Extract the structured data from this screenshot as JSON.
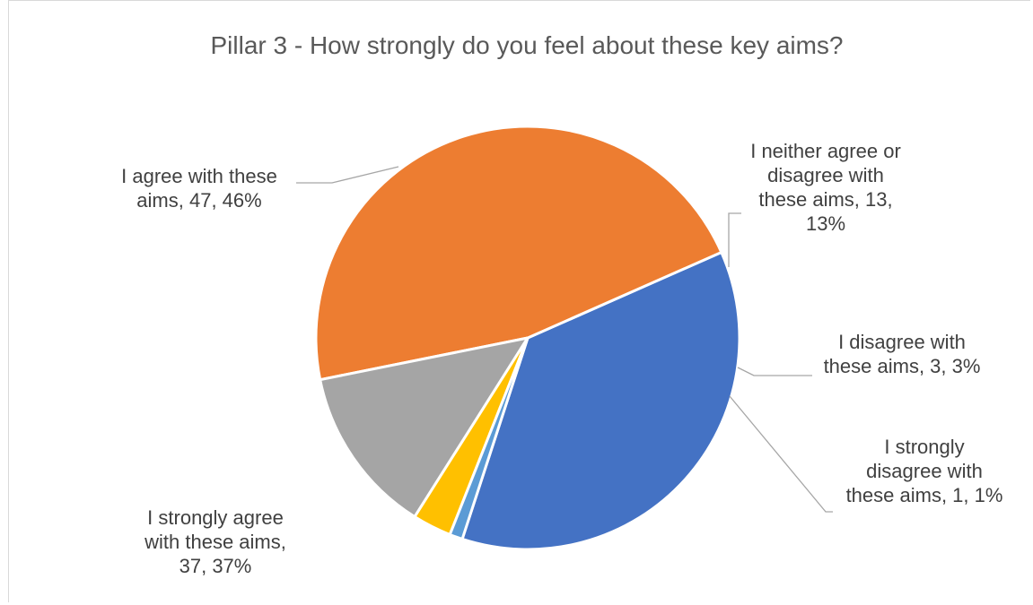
{
  "chart_data": {
    "type": "pie",
    "title": "Pillar 3 - How strongly do you feel about these key aims?",
    "slices": [
      {
        "name": "I strongly agree with these aims",
        "value": 37,
        "percent": "37%",
        "color": "#4472c4",
        "label_lines": [
          "I strongly agree",
          "with these aims,",
          "37, 37%"
        ]
      },
      {
        "name": "I agree with these aims",
        "value": 47,
        "percent": "46%",
        "color": "#ed7d31",
        "label_lines": [
          "I agree with these",
          "aims, 47, 46%"
        ]
      },
      {
        "name": "I neither agree or disagree with these aims",
        "value": 13,
        "percent": "13%",
        "color": "#a5a5a5",
        "label_lines": [
          "I neither agree or",
          "disagree with",
          "these aims, 13,",
          "13%"
        ]
      },
      {
        "name": "I disagree with these aims",
        "value": 3,
        "percent": "3%",
        "color": "#ffc000",
        "label_lines": [
          "I disagree with",
          "these aims, 3, 3%"
        ]
      },
      {
        "name": "I strongly disagree with these aims",
        "value": 1,
        "percent": "1%",
        "color": "#5b9bd5",
        "label_lines": [
          "I strongly",
          "disagree with",
          "these aims, 1, 1%"
        ]
      }
    ],
    "start_angle_deg": 108,
    "direction": "clockwise",
    "show_data_labels": true,
    "legend": "none"
  }
}
